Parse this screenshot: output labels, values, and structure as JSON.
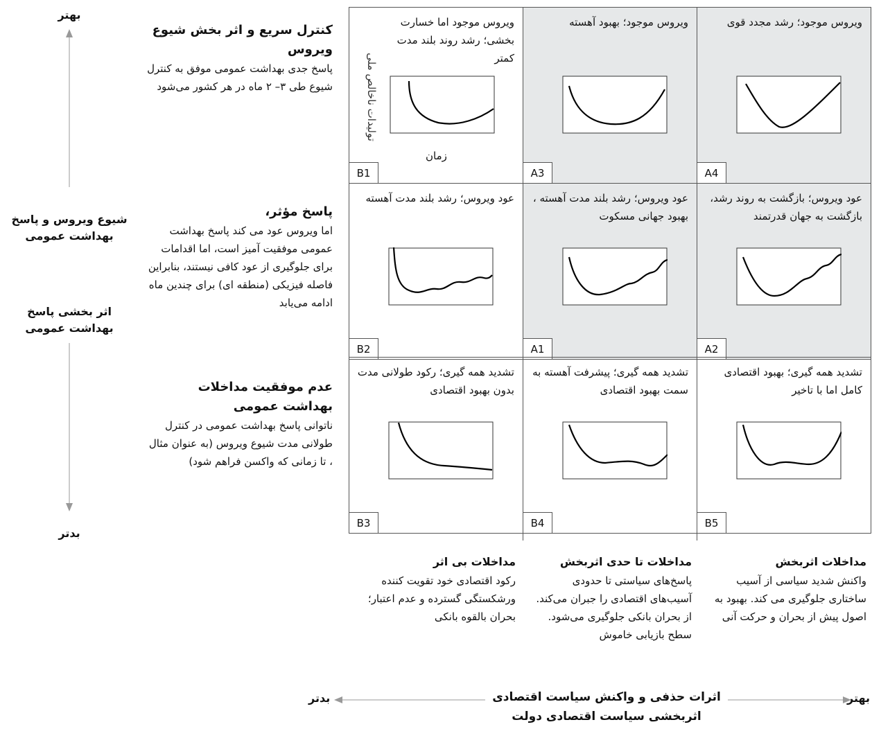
{
  "left_axis": {
    "top": "بهتر",
    "middle1": "شیوع ویروس و پاسخ بهداشت عمومی",
    "middle2": "اثر بخشی پاسخ بهداشت عمومی",
    "bottom": "بدتر"
  },
  "rows": [
    {
      "title": "کنترل سریع و اثر بخش شیوع ویروس",
      "desc": "پاسخ جدی بهداشت عمومی موفق به کنترل شیوع طی ۳– ۲ ماه  در هر کشور می‌شود"
    },
    {
      "title": "پاسخ مؤثر،",
      "desc": "اما ویروس عود می کند پاسخ بهداشت عمومی موفقیت آمیز است، اما اقدامات برای جلوگیری از عود کافی نیستند، بنابراین فاصله فیزیکی (منطقه ای) برای چندین ماه ادامه می‌یابد"
    },
    {
      "title": "عدم موفقیت مداخلات بهداشت عمومی",
      "desc": "ناتوانی پاسخ بهداشت عمومی در کنترل طولانی مدت شیوع ویروس (به عنوان مثال ، تا زمانی که واکسن فراهم شود)"
    }
  ],
  "cells": [
    {
      "code": "B1",
      "text": "ویروس موجود اما خسارت بخشی؛ رشد روند بلند مدت کمتر",
      "shaded": false,
      "curve": "b1",
      "ylabel": "تولیدات ناخالص ملی",
      "xlabel": "زمان"
    },
    {
      "code": "A3",
      "text": "ویروس موجود؛ بهبود آهسته",
      "shaded": true,
      "curve": "a3"
    },
    {
      "code": "A4",
      "text": "ویروس موجود؛ رشد مجدد قوی",
      "shaded": true,
      "curve": "a4"
    },
    {
      "code": "B2",
      "text": "عود ویروس؛ رشد بلند مدت آهسته",
      "shaded": false,
      "curve": "b2"
    },
    {
      "code": "A1",
      "text": "عود ویروس؛ رشد بلند مدت آهسته ، بهبود جهانی مسکوت",
      "shaded": true,
      "curve": "a1"
    },
    {
      "code": "A2",
      "text": "عود ویروس؛ بازگشت به  روند رشد، بازگشت به جهان قدرتمند",
      "shaded": true,
      "curve": "a2"
    },
    {
      "code": "B3",
      "text": "تشدید همه گیری؛ رکود طولانی مدت بدون بهبود اقتصادی",
      "shaded": false,
      "curve": "b3"
    },
    {
      "code": "B4",
      "text": "تشدید همه گیری؛ پیشرفت آهسته به سمت بهبود اقتصادی",
      "shaded": false,
      "curve": "b4"
    },
    {
      "code": "B5",
      "text": "تشدید همه گیری؛ بهبود اقتصادی کامل اما با تاخیر",
      "shaded": false,
      "curve": "b5"
    }
  ],
  "columns": [
    {
      "title": "مداخلات بی اثر",
      "desc": "رکود اقتصادی خود تقویت کننده ورشکستگی گسترده و عدم اعتبار؛ بحران بالقوه بانکی"
    },
    {
      "title": "مداخلات تا حدی اثربخش",
      "desc": "پاسخ‌های سیاستی تا حدودی آسیب‌های اقتصادی را جبران می‌کند. از بحران بانکی جلوگیری می‌شود. سطح بازیابی خاموش"
    },
    {
      "title": "مداخلات اثربخش",
      "desc": "واکنش شدید سیاسی از آسیب ساختاری جلوگیری می کند. بهبود به اصول پیش از بحران و حرکت آنی"
    }
  ],
  "bottom_axis": {
    "left": "بدتر",
    "title": "اثرات حذفی و واکنش سیاست اقتصادی",
    "subtitle": "اثربخشی سیاست اقتصادی دولت",
    "right": "بهتر"
  }
}
